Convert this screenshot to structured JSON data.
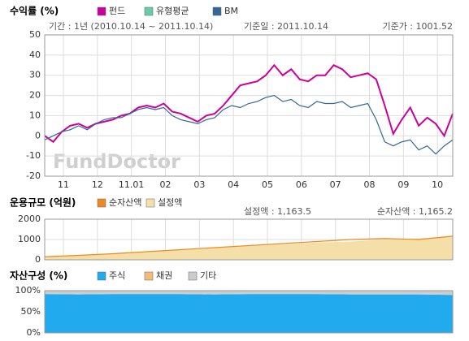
{
  "chart_data": [
    {
      "type": "line",
      "title": "수익률 (%)",
      "annotations": [
        "기간 : 1년 (2010.10.14 ~ 2011.10.14)",
        "기준일 : 2011.10.14",
        "기준가 : 1001.52"
      ],
      "watermark": "FundDoctor",
      "x": [
        0.45,
        0.7,
        0.95,
        1.2,
        1.45,
        1.7,
        1.95,
        2.2,
        2.45,
        2.7,
        2.95,
        3.2,
        3.45,
        3.7,
        3.95,
        4.2,
        4.45,
        4.7,
        4.95,
        5.2,
        5.45,
        5.7,
        5.95,
        6.2,
        6.45,
        6.7,
        6.95,
        7.2,
        7.45,
        7.7,
        7.95,
        8.2,
        8.45,
        8.7,
        8.95,
        9.2,
        9.45,
        9.7,
        9.95,
        10.2,
        10.45,
        10.7,
        10.95,
        11.2,
        11.45,
        11.7,
        11.95,
        12.2,
        12.45
      ],
      "xlim": [
        0.45,
        12.45
      ],
      "xticks": [
        {
          "value": 1,
          "label": "11"
        },
        {
          "value": 2,
          "label": "12"
        },
        {
          "value": 3,
          "label": "11.01"
        },
        {
          "value": 4,
          "label": "02"
        },
        {
          "value": 5,
          "label": "03"
        },
        {
          "value": 6,
          "label": "04"
        },
        {
          "value": 7,
          "label": "05"
        },
        {
          "value": 8,
          "label": "06"
        },
        {
          "value": 9,
          "label": "07"
        },
        {
          "value": 10,
          "label": "08"
        },
        {
          "value": 11,
          "label": "09"
        },
        {
          "value": 12,
          "label": "10"
        }
      ],
      "ylim": [
        -20,
        50
      ],
      "yticks": [
        50,
        40,
        30,
        20,
        10,
        0,
        -10,
        -20
      ],
      "grid": true,
      "series": [
        {
          "name": "펀드",
          "color": "#cc0099",
          "style": "line",
          "values": [
            0,
            -3,
            2,
            5,
            6,
            4,
            6,
            7,
            8,
            10,
            11,
            14,
            15,
            14,
            16,
            12,
            11,
            9,
            7,
            10,
            11,
            15,
            20,
            25,
            26,
            27,
            30,
            35,
            30,
            33,
            28,
            27,
            30,
            30,
            35,
            33,
            29,
            30,
            31,
            28,
            15,
            1,
            8,
            14,
            5,
            9,
            6,
            0,
            11
          ]
        },
        {
          "name": "유형평균",
          "color": "#66ccaa",
          "style": "line",
          "values": [
            null,
            null,
            null,
            null,
            null,
            null,
            null,
            null,
            null,
            null,
            null,
            null,
            null,
            null,
            null,
            null,
            null,
            null,
            null,
            null,
            null,
            null,
            null,
            null,
            null,
            null,
            null,
            null,
            null,
            null,
            null,
            null,
            null,
            null,
            null,
            null,
            null,
            null,
            null,
            null,
            null,
            null,
            null,
            null,
            null,
            null,
            null,
            null,
            null
          ]
        },
        {
          "name": "BM",
          "color": "#336699",
          "style": "line",
          "values": [
            -2,
            0,
            2,
            3,
            5,
            3,
            6,
            8,
            9,
            9,
            11,
            13,
            14,
            13,
            14,
            10,
            8,
            7,
            6,
            8,
            9,
            13,
            15,
            14,
            16,
            17,
            19,
            20,
            17,
            18,
            15,
            14,
            17,
            16,
            16,
            17,
            14,
            15,
            16,
            8,
            -3,
            -5,
            -3,
            -2,
            -7,
            -5,
            -9,
            -5,
            -2
          ]
        }
      ]
    },
    {
      "type": "line",
      "title": "운용규모 (억원)",
      "annotations": [
        "설정액 : 1,163.5",
        "순자산액 : 1,165.2"
      ],
      "x": [
        0.45,
        1.45,
        2.45,
        3.45,
        4.45,
        5.45,
        6.45,
        7.45,
        8.45,
        9.45,
        10.45,
        11.45,
        12.45
      ],
      "xlim": [
        0.45,
        12.45
      ],
      "ylim": [
        0,
        2000
      ],
      "yticks": [
        2000,
        1000,
        0
      ],
      "grid": true,
      "series": [
        {
          "name": "순자산액",
          "color": "#ee8822",
          "style": "line",
          "values": [
            150,
            220,
            300,
            400,
            500,
            600,
            700,
            800,
            900,
            1000,
            1050,
            1000,
            1165.2
          ]
        },
        {
          "name": "설정액",
          "color": "#f5dfa8",
          "style": "area",
          "values": [
            150,
            210,
            290,
            380,
            480,
            580,
            670,
            760,
            850,
            900,
            1000,
            1050,
            1163.5
          ]
        }
      ]
    },
    {
      "type": "area",
      "stacked": true,
      "title": "자산구성 (%)",
      "x": [
        0.45,
        1.45,
        2.45,
        3.45,
        4.45,
        5.45,
        6.45,
        7.45,
        8.45,
        9.45,
        10.45,
        11.45,
        12.45
      ],
      "xlim": [
        0.45,
        12.45
      ],
      "ylim": [
        0,
        100
      ],
      "yticks": [
        {
          "value": 100,
          "label": "100%"
        },
        {
          "value": 50,
          "label": "50%"
        },
        {
          "value": 0,
          "label": "0%"
        }
      ],
      "grid": true,
      "series": [
        {
          "name": "주식",
          "color": "#22aaee",
          "style": "area",
          "values": [
            92,
            91,
            92,
            92,
            92,
            91,
            92,
            92,
            92,
            91,
            91,
            91,
            90
          ]
        },
        {
          "name": "채권",
          "color": "#f5bb77",
          "style": "area",
          "values": [
            0,
            0,
            0,
            0,
            0,
            0,
            0,
            0,
            0,
            0,
            0,
            0,
            0
          ]
        },
        {
          "name": "기타",
          "color": "#cccccc",
          "style": "area",
          "values": [
            8,
            9,
            8,
            8,
            8,
            9,
            8,
            8,
            8,
            9,
            9,
            9,
            10
          ]
        }
      ]
    }
  ]
}
